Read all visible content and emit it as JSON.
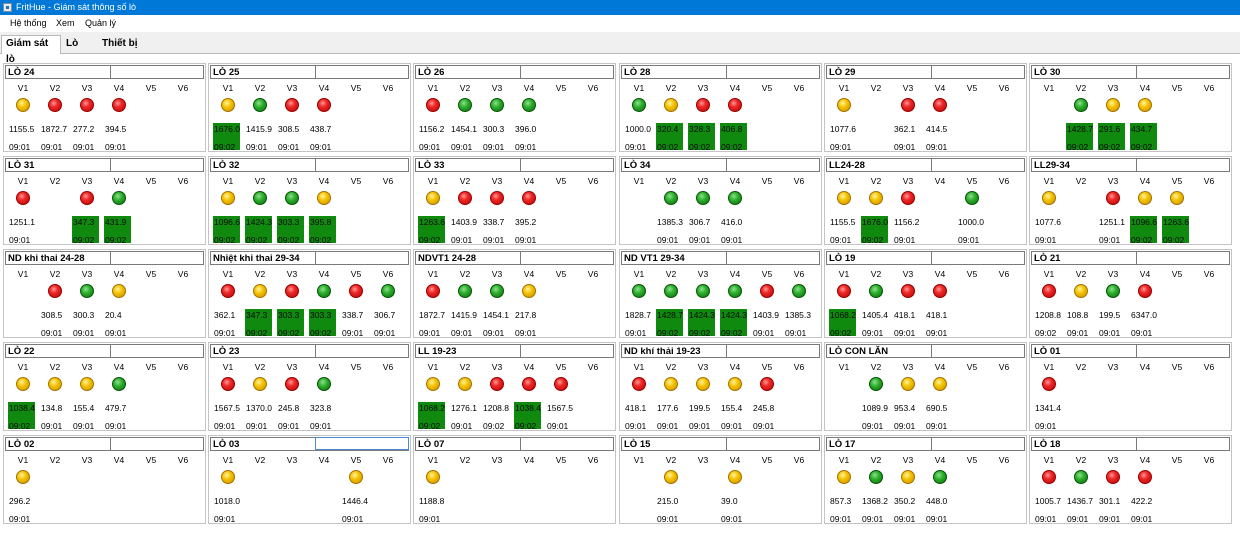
{
  "window": {
    "title": "FritHue - Giám sát thông số lò"
  },
  "menu": [
    "Hệ thống",
    "Xem",
    "Quản lý"
  ],
  "tabs": [
    "Giám sát lò",
    "Lò",
    "Thiết bị"
  ],
  "active_tab": 0,
  "column_labels": [
    "V1",
    "V2",
    "V3",
    "V4",
    "V5",
    "V6"
  ],
  "colors": {
    "red": "#e02020",
    "yellow": "#f5c200",
    "green": "#1e9e1e",
    "highlight": "#0f8a0f"
  },
  "panels": [
    {
      "name": "LÒ 24",
      "channels": [
        {
          "lamp": "yellow",
          "value": "1155.5",
          "time": "09:01"
        },
        {
          "lamp": "red",
          "value": "1872.7",
          "time": "09:01"
        },
        {
          "lamp": "red",
          "value": "277.2",
          "time": "09:01"
        },
        {
          "lamp": "red",
          "value": "394.5",
          "time": "09:01"
        },
        {},
        {}
      ]
    },
    {
      "name": "LÒ 25",
      "channels": [
        {
          "lamp": "yellow",
          "value": "1676.0",
          "time": "09:02",
          "highlight": true
        },
        {
          "lamp": "green",
          "value": "1415.9",
          "time": "09:01"
        },
        {
          "lamp": "red",
          "value": "308.5",
          "time": "09:01"
        },
        {
          "lamp": "red",
          "value": "438.7",
          "time": "09:01"
        },
        {},
        {}
      ]
    },
    {
      "name": "LÒ 26",
      "channels": [
        {
          "lamp": "red",
          "value": "1156.2",
          "time": "09:01"
        },
        {
          "lamp": "green",
          "value": "1454.1",
          "time": "09:01"
        },
        {
          "lamp": "green",
          "value": "300.3",
          "time": "09:01"
        },
        {
          "lamp": "green",
          "value": "396.0",
          "time": "09:01"
        },
        {},
        {}
      ]
    },
    {
      "name": "LÒ 28",
      "channels": [
        {
          "lamp": "green",
          "value": "1000.0",
          "time": "09:01"
        },
        {
          "lamp": "yellow",
          "value": "320.4",
          "time": "09:02",
          "highlight": true
        },
        {
          "lamp": "red",
          "value": "328.3",
          "time": "09:02",
          "highlight": true
        },
        {
          "lamp": "red",
          "value": "406.8",
          "time": "09:02",
          "highlight": true
        },
        {},
        {}
      ]
    },
    {
      "name": "LÒ 29",
      "channels": [
        {
          "lamp": "yellow",
          "value": "1077.6",
          "time": "09:01"
        },
        {},
        {
          "lamp": "red",
          "value": "362.1",
          "time": "09:01"
        },
        {
          "lamp": "red",
          "value": "414.5",
          "time": "09:01"
        },
        {},
        {}
      ]
    },
    {
      "name": "LÒ 30",
      "channels": [
        {},
        {
          "lamp": "green",
          "value": "1428.7",
          "time": "09:02",
          "highlight": true
        },
        {
          "lamp": "yellow",
          "value": "291.6",
          "time": "09:02",
          "highlight": true
        },
        {
          "lamp": "yellow",
          "value": "434.7",
          "time": "09:02",
          "highlight": true
        },
        {},
        {}
      ]
    },
    {
      "name": "LÒ 31",
      "channels": [
        {
          "lamp": "red",
          "value": "1251.1",
          "time": "09:01"
        },
        {},
        {
          "lamp": "red",
          "value": "347.3",
          "time": "09:02",
          "highlight": true
        },
        {
          "lamp": "green",
          "value": "431.9",
          "time": "09:02",
          "highlight": true
        },
        {},
        {}
      ]
    },
    {
      "name": "LÒ 32",
      "channels": [
        {
          "lamp": "yellow",
          "value": "1096.6",
          "time": "09:02",
          "highlight": true
        },
        {
          "lamp": "green",
          "value": "1424.3",
          "time": "09:02",
          "highlight": true
        },
        {
          "lamp": "green",
          "value": "303.3",
          "time": "09:02",
          "highlight": true
        },
        {
          "lamp": "yellow",
          "value": "395.8",
          "time": "09:02",
          "highlight": true
        },
        {},
        {}
      ]
    },
    {
      "name": "LÒ 33",
      "channels": [
        {
          "lamp": "yellow",
          "value": "1263.6",
          "time": "09:02",
          "highlight": true
        },
        {
          "lamp": "red",
          "value": "1403.9",
          "time": "09:01"
        },
        {
          "lamp": "red",
          "value": "338.7",
          "time": "09:01"
        },
        {
          "lamp": "red",
          "value": "395.2",
          "time": "09:01"
        },
        {},
        {}
      ]
    },
    {
      "name": "LÒ 34",
      "channels": [
        {},
        {
          "lamp": "green",
          "value": "1385.3",
          "time": "09:01"
        },
        {
          "lamp": "green",
          "value": "306.7",
          "time": "09:01"
        },
        {
          "lamp": "green",
          "value": "416.0",
          "time": "09:01"
        },
        {},
        {}
      ]
    },
    {
      "name": "LL24-28",
      "channels": [
        {
          "lamp": "yellow",
          "value": "1155.5",
          "time": "09:01"
        },
        {
          "lamp": "yellow",
          "value": "1676.0",
          "time": "09:02",
          "highlight": true
        },
        {
          "lamp": "red",
          "value": "1156.2",
          "time": "09:01"
        },
        {},
        {
          "lamp": "green",
          "value": "1000.0",
          "time": "09:01"
        },
        {}
      ]
    },
    {
      "name": "LL29-34",
      "channels": [
        {
          "lamp": "yellow",
          "value": "1077.6",
          "time": "09:01"
        },
        {},
        {
          "lamp": "red",
          "value": "1251.1",
          "time": "09:01"
        },
        {
          "lamp": "yellow",
          "value": "1096.6",
          "time": "09:02",
          "highlight": true
        },
        {
          "lamp": "yellow",
          "value": "1263.6",
          "time": "09:02",
          "highlight": true
        },
        {}
      ]
    },
    {
      "name": "ND khi thai 24-28",
      "channels": [
        {},
        {
          "lamp": "red",
          "value": "308.5",
          "time": "09:01"
        },
        {
          "lamp": "green",
          "value": "300.3",
          "time": "09:01"
        },
        {
          "lamp": "yellow",
          "value": "20.4",
          "time": "09:01"
        },
        {},
        {}
      ]
    },
    {
      "name": "Nhiệt khi thai 29-34",
      "channels": [
        {
          "lamp": "red",
          "value": "362.1",
          "time": "09:01"
        },
        {
          "lamp": "yellow",
          "value": "347.3",
          "time": "09:02",
          "highlight": true
        },
        {
          "lamp": "red",
          "value": "303.3",
          "time": "09:02",
          "highlight": true
        },
        {
          "lamp": "green",
          "value": "303.3",
          "time": "09:02",
          "highlight": true
        },
        {
          "lamp": "red",
          "value": "338.7",
          "time": "09:01"
        },
        {
          "lamp": "green",
          "value": "306.7",
          "time": "09:01"
        }
      ]
    },
    {
      "name": "NDVT1 24-28",
      "channels": [
        {
          "lamp": "red",
          "value": "1872.7",
          "time": "09:01"
        },
        {
          "lamp": "green",
          "value": "1415.9",
          "time": "09:01"
        },
        {
          "lamp": "green",
          "value": "1454.1",
          "time": "09:01"
        },
        {
          "lamp": "yellow",
          "value": "217.8",
          "time": "09:01"
        },
        {},
        {}
      ]
    },
    {
      "name": "ND VT1 29-34",
      "channels": [
        {
          "lamp": "green",
          "value": "1828.7",
          "time": "09:01"
        },
        {
          "lamp": "green",
          "value": "1428.7",
          "time": "09:02",
          "highlight": true
        },
        {
          "lamp": "green",
          "value": "1424.3",
          "time": "09:02",
          "highlight": true
        },
        {
          "lamp": "green",
          "value": "1424.3",
          "time": "09:02",
          "highlight": true
        },
        {
          "lamp": "red",
          "value": "1403.9",
          "time": "09:01"
        },
        {
          "lamp": "green",
          "value": "1385.3",
          "time": "09:01"
        }
      ]
    },
    {
      "name": "LÒ 19",
      "channels": [
        {
          "lamp": "red",
          "value": "1068.2",
          "time": "09:02",
          "highlight": true
        },
        {
          "lamp": "green",
          "value": "1405.4",
          "time": "09:01"
        },
        {
          "lamp": "red",
          "value": "418.1",
          "time": "09:01"
        },
        {
          "lamp": "red",
          "value": "418.1",
          "time": "09:01"
        },
        {},
        {}
      ]
    },
    {
      "name": "LÒ 21",
      "channels": [
        {
          "lamp": "red",
          "value": "1208.8",
          "time": "09:02"
        },
        {
          "lamp": "yellow",
          "value": "108.8",
          "time": "09:01"
        },
        {
          "lamp": "green",
          "value": "199.5",
          "time": "09:01"
        },
        {
          "lamp": "red",
          "value": "6347.0",
          "time": "09:01"
        },
        {},
        {}
      ]
    },
    {
      "name": "LÒ 22",
      "channels": [
        {
          "lamp": "yellow",
          "value": "1038.4",
          "time": "09:02",
          "highlight": true
        },
        {
          "lamp": "yellow",
          "value": "134.8",
          "time": "09:01"
        },
        {
          "lamp": "yellow",
          "value": "155.4",
          "time": "09:01"
        },
        {
          "lamp": "green",
          "value": "479.7",
          "time": "09:01"
        },
        {},
        {}
      ]
    },
    {
      "name": "LÒ 23",
      "channels": [
        {
          "lamp": "red",
          "value": "1567.5",
          "time": "09:01"
        },
        {
          "lamp": "yellow",
          "value": "1370.0",
          "time": "09:01"
        },
        {
          "lamp": "red",
          "value": "245.8",
          "time": "09:01"
        },
        {
          "lamp": "green",
          "value": "323.8",
          "time": "09:01"
        },
        {},
        {}
      ]
    },
    {
      "name": "LL 19-23",
      "channels": [
        {
          "lamp": "yellow",
          "value": "1068.2",
          "time": "09:02",
          "highlight": true
        },
        {
          "lamp": "yellow",
          "value": "1276.1",
          "time": "09:01"
        },
        {
          "lamp": "red",
          "value": "1208.8",
          "time": "09:02"
        },
        {
          "lamp": "red",
          "value": "1038.4",
          "time": "09:02",
          "highlight": true
        },
        {
          "lamp": "red",
          "value": "1567.5",
          "time": "09:01"
        },
        {}
      ]
    },
    {
      "name": "ND khí thải 19-23",
      "channels": [
        {
          "lamp": "red",
          "value": "418.1",
          "time": "09:01"
        },
        {
          "lamp": "yellow",
          "value": "177.6",
          "time": "09:01"
        },
        {
          "lamp": "yellow",
          "value": "199.5",
          "time": "09:01"
        },
        {
          "lamp": "yellow",
          "value": "155.4",
          "time": "09:01"
        },
        {
          "lamp": "red",
          "value": "245.8",
          "time": "09:01"
        },
        {}
      ]
    },
    {
      "name": "LÒ CON LĂN",
      "channels": [
        {},
        {
          "lamp": "green",
          "value": "1089.9",
          "time": "09:01"
        },
        {
          "lamp": "yellow",
          "value": "953.4",
          "time": "09:01"
        },
        {
          "lamp": "yellow",
          "value": "690.5",
          "time": "09:01"
        },
        {},
        {}
      ]
    },
    {
      "name": "LÒ 01",
      "channels": [
        {
          "lamp": "red",
          "value": "1341.4",
          "time": "09:01"
        },
        {},
        {},
        {},
        {},
        {}
      ]
    },
    {
      "name": "LÒ 02",
      "channels": [
        {
          "lamp": "yellow",
          "value": "296.2",
          "time": "09:01"
        },
        {},
        {},
        {},
        {},
        {}
      ]
    },
    {
      "name": "LÒ 03",
      "selected": true,
      "channels": [
        {
          "lamp": "yellow",
          "value": "1018.0",
          "time": "09:01"
        },
        {},
        {},
        {},
        {
          "lamp": "yellow",
          "value": "1446.4",
          "time": "09:01"
        },
        {}
      ]
    },
    {
      "name": "LÒ 07",
      "channels": [
        {
          "lamp": "yellow",
          "value": "1188.8",
          "time": "09:01"
        },
        {},
        {},
        {},
        {},
        {}
      ]
    },
    {
      "name": "LÒ 15",
      "channels": [
        {},
        {
          "lamp": "yellow",
          "value": "215.0",
          "time": "09:01"
        },
        {},
        {
          "lamp": "yellow",
          "value": "39.0",
          "time": "09:01"
        },
        {},
        {}
      ]
    },
    {
      "name": "LÒ 17",
      "channels": [
        {
          "lamp": "yellow",
          "value": "857.3",
          "time": "09:01"
        },
        {
          "lamp": "green",
          "value": "1368.2",
          "time": "09:01"
        },
        {
          "lamp": "yellow",
          "value": "350.2",
          "time": "09:01"
        },
        {
          "lamp": "green",
          "value": "448.0",
          "time": "09:01"
        },
        {},
        {}
      ]
    },
    {
      "name": "LÒ 18",
      "channels": [
        {
          "lamp": "red",
          "value": "1005.7",
          "time": "09:01"
        },
        {
          "lamp": "green",
          "value": "1436.7",
          "time": "09:01"
        },
        {
          "lamp": "red",
          "value": "301.1",
          "time": "09:01"
        },
        {
          "lamp": "red",
          "value": "422.2",
          "time": "09:01"
        },
        {},
        {}
      ]
    }
  ]
}
